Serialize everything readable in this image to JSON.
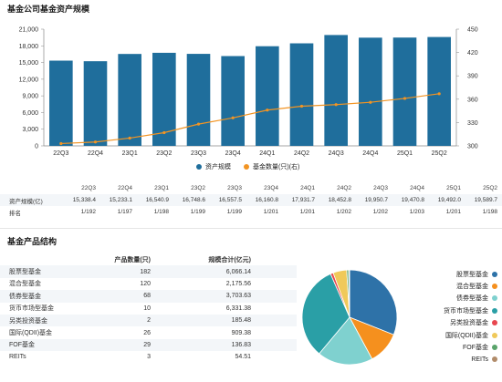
{
  "section1_title": "基金公司基金资产规模",
  "section2_title": "基金产品结构",
  "legend": {
    "scale_label": "资产规模",
    "count_label": "基金数量(只)(右)",
    "scale_color": "#1f6e9c",
    "count_color": "#f29423"
  },
  "chart_data": {
    "type": "bar",
    "categories": [
      "22Q3",
      "22Q4",
      "23Q1",
      "23Q2",
      "23Q3",
      "23Q4",
      "24Q1",
      "24Q2",
      "24Q3",
      "24Q4",
      "25Q1",
      "25Q2"
    ],
    "series": [
      {
        "name": "资产规模",
        "type": "bar",
        "axis": "left",
        "values": [
          15338.4,
          15233.1,
          16540.9,
          16748.6,
          16557.5,
          16160.8,
          17931.7,
          18452.8,
          19950.7,
          19470.8,
          19492.0,
          19589.7
        ]
      },
      {
        "name": "基金数量(只)(右)",
        "type": "line",
        "axis": "right",
        "values": [
          303,
          305,
          310,
          317,
          328,
          336,
          346,
          351,
          353,
          356,
          361,
          367
        ]
      }
    ],
    "yticks_left": [
      "0",
      "3,000",
      "6,000",
      "9,000",
      "12,000",
      "15,000",
      "18,000",
      "21,000"
    ],
    "ylim_left": [
      0,
      21000
    ],
    "yticks_right": [
      "300",
      "330",
      "360",
      "390",
      "420",
      "450"
    ],
    "ylim_right": [
      300,
      450
    ]
  },
  "quarter_table": {
    "headers": [
      "22Q3",
      "22Q4",
      "23Q1",
      "23Q2",
      "23Q3",
      "23Q4",
      "24Q1",
      "24Q2",
      "24Q3",
      "24Q4",
      "25Q1",
      "25Q2"
    ],
    "rows": [
      {
        "label": "资产规模(亿)",
        "cells": [
          "15,338.4",
          "15,233.1",
          "16,540.9",
          "16,748.6",
          "16,557.5",
          "16,160.8",
          "17,931.7",
          "18,452.8",
          "19,950.7",
          "19,470.8",
          "19,492.0",
          "19,589.7"
        ]
      },
      {
        "label": "排名",
        "cells": [
          "1/192",
          "1/197",
          "1/198",
          "1/199",
          "1/199",
          "1/201",
          "1/201",
          "1/202",
          "1/202",
          "1/203",
          "1/201",
          "1/198"
        ]
      }
    ]
  },
  "product_table": {
    "headers": {
      "name": "",
      "count": "产品数量(只)",
      "scale": "规模合计(亿元)"
    },
    "rows": [
      {
        "name": "股票型基金",
        "count": "182",
        "scale": "6,066.14"
      },
      {
        "name": "混合型基金",
        "count": "120",
        "scale": "2,175.56"
      },
      {
        "name": "债券型基金",
        "count": "68",
        "scale": "3,703.63"
      },
      {
        "name": "货币市场型基金",
        "count": "10",
        "scale": "6,331.38"
      },
      {
        "name": "另类投资基金",
        "count": "2",
        "scale": "185.48"
      },
      {
        "name": "国际(QDII)基金",
        "count": "26",
        "scale": "909.38"
      },
      {
        "name": "FOF基金",
        "count": "29",
        "scale": "136.83"
      },
      {
        "name": "REITs",
        "count": "3",
        "scale": "54.51"
      }
    ]
  },
  "pie": {
    "values": [
      6066.14,
      2175.56,
      3703.63,
      6331.38,
      185.48,
      909.38,
      136.83,
      54.51
    ],
    "labels": [
      "股票型基金",
      "混合型基金",
      "债券型基金",
      "货币市场型基金",
      "另类投资基金",
      "国际(QDII)基金",
      "FOF基金",
      "REITs"
    ],
    "colors": [
      "#2e72a8",
      "#f5901e",
      "#7fd1cf",
      "#2a9fa6",
      "#e8474f",
      "#f0c95a",
      "#5aa46b",
      "#b18c6a"
    ]
  }
}
